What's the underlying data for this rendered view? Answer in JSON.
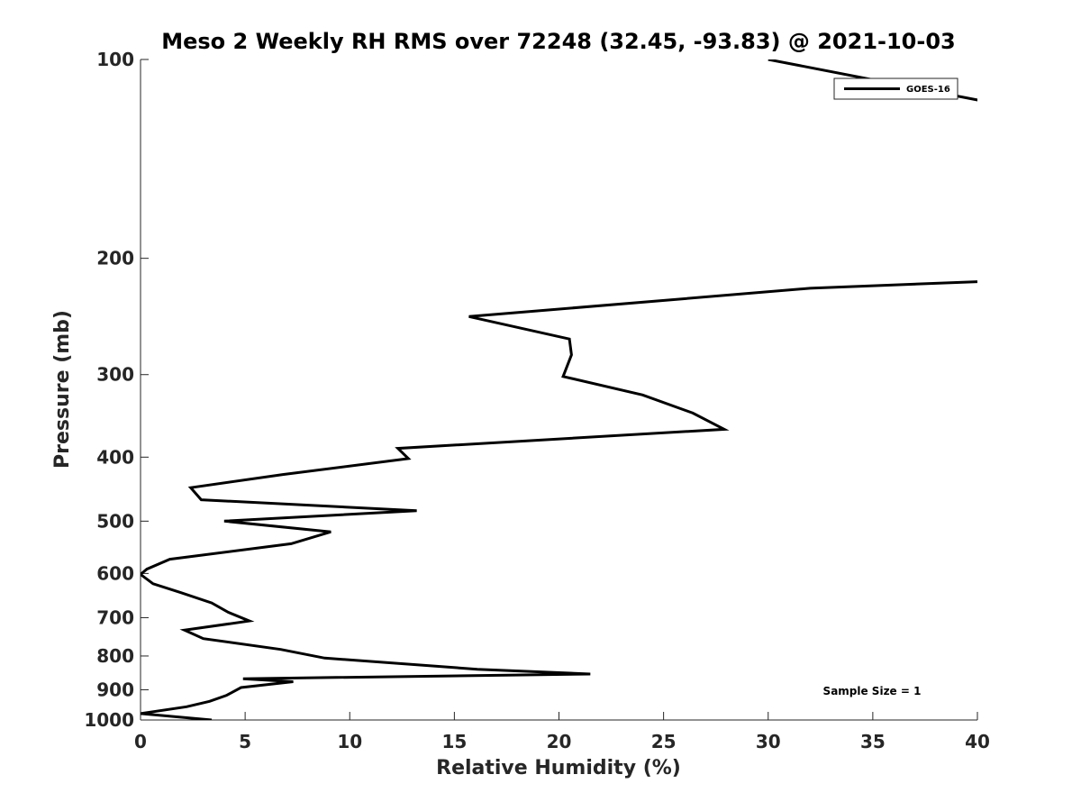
{
  "chart_data": {
    "type": "line",
    "title": "Meso 2 Weekly RH RMS over 72248 (32.45, -93.83) @ 2021-10-03",
    "xlabel": "Relative Humidity (%)",
    "ylabel": "Pressure (mb)",
    "xlim": [
      0,
      40
    ],
    "ylim": [
      1000,
      100
    ],
    "yscale": "log",
    "grid": false,
    "legend_position": "top-right",
    "x_ticks": [
      "0",
      "5",
      "10",
      "15",
      "20",
      "25",
      "30",
      "35",
      "40"
    ],
    "y_ticks": [
      "100",
      "200",
      "300",
      "400",
      "500",
      "600",
      "700",
      "800",
      "900",
      "1000"
    ],
    "annotation": "Sample Size = 1",
    "series": [
      {
        "name": "GOES-16",
        "color": "#000000",
        "points": [
          [
            30.0,
            100
          ],
          [
            40.5,
            116
          ],
          [
            40.0,
            217
          ],
          [
            32.0,
            222
          ],
          [
            15.7,
            245
          ],
          [
            20.5,
            265
          ],
          [
            20.6,
            280
          ],
          [
            20.2,
            302
          ],
          [
            24.0,
            322
          ],
          [
            26.4,
            343
          ],
          [
            27.9,
            363
          ],
          [
            12.3,
            388
          ],
          [
            12.8,
            402
          ],
          [
            6.8,
            425
          ],
          [
            2.4,
            445
          ],
          [
            2.9,
            464
          ],
          [
            13.2,
            482
          ],
          [
            4.0,
            500
          ],
          [
            9.1,
            519
          ],
          [
            7.2,
            541
          ],
          [
            1.4,
            571
          ],
          [
            0.3,
            591
          ],
          [
            0.0,
            602
          ],
          [
            0.6,
            622
          ],
          [
            1.9,
            641
          ],
          [
            3.4,
            665
          ],
          [
            4.2,
            687
          ],
          [
            5.2,
            708
          ],
          [
            2.1,
            731
          ],
          [
            3.0,
            753
          ],
          [
            6.7,
            782
          ],
          [
            8.8,
            806
          ],
          [
            16.1,
            838
          ],
          [
            21.5,
            852
          ],
          [
            4.9,
            866
          ],
          [
            7.3,
            875
          ],
          [
            4.8,
            893
          ],
          [
            4.1,
            918
          ],
          [
            3.3,
            937
          ],
          [
            2.2,
            955
          ],
          [
            0.0,
            978
          ],
          [
            3.4,
            1000
          ]
        ]
      }
    ]
  }
}
